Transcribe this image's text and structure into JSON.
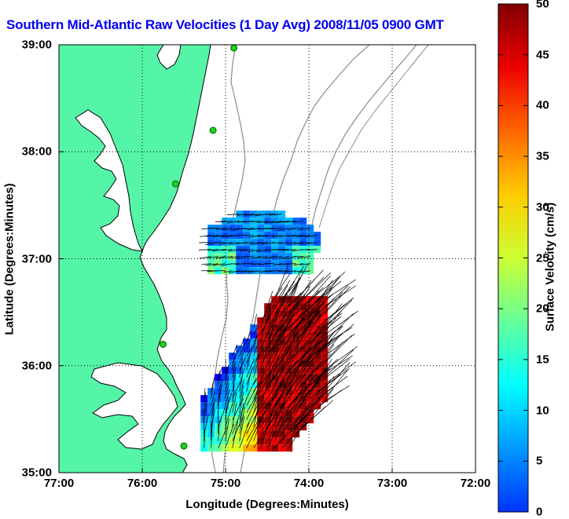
{
  "title": "Southern Mid-Atlantic Raw Velocities (1 Day Avg) 2008/11/05 0900 GMT",
  "colors": {
    "land": "#55f5a8",
    "coastline": "#000000",
    "bathymetry": "#8c8c8c",
    "stations": "#22cc22",
    "vectors": "#000000",
    "grid": "#000000"
  },
  "chart_data": {
    "type": "heatmap",
    "subtype": "surface-current-map",
    "title": "Southern Mid-Atlantic Raw Velocities (1 Day Avg) 2008/11/05 0900 GMT",
    "xlabel": "Longitude (Degrees:Minutes)",
    "ylabel": "Latitude (Degrees:Minutes)",
    "x_ticks": [
      "77:00",
      "76:00",
      "75:00",
      "74:00",
      "73:00",
      "72:00"
    ],
    "y_ticks": [
      "39:00",
      "38:00",
      "37:00",
      "36:00",
      "35:00"
    ],
    "xlim": [
      -77,
      -72
    ],
    "ylim": [
      35,
      39
    ],
    "grid": true,
    "colorbar": {
      "label": "Surface Velocity (cm/s)",
      "min": 0,
      "max": 50,
      "ticks": [
        "50",
        "45",
        "40",
        "35",
        "30",
        "25",
        "20",
        "15",
        "10",
        "5",
        "0"
      ],
      "colormap": "jet"
    },
    "stations": [
      {
        "lon": -74.9,
        "lat": 38.97
      },
      {
        "lon": -75.15,
        "lat": 38.2
      },
      {
        "lon": -75.6,
        "lat": 37.7
      },
      {
        "lon": -75.75,
        "lat": 36.2
      },
      {
        "lon": -75.5,
        "lat": 35.25
      }
    ],
    "regions": [
      {
        "name": "northern",
        "lon": [
          -75.3,
          -73.9
        ],
        "lat": [
          36.9,
          37.45
        ],
        "speed_range": [
          5,
          20
        ]
      },
      {
        "name": "southern",
        "lon": [
          -75.3,
          -73.8
        ],
        "lat": [
          35.2,
          36.65
        ],
        "speed_range": [
          5,
          50
        ]
      }
    ]
  }
}
